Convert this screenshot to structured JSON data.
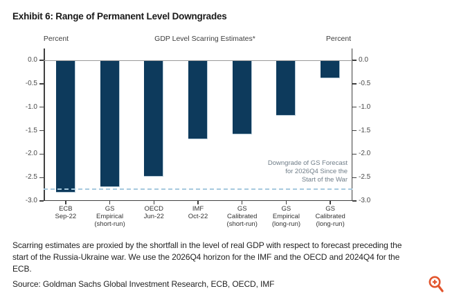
{
  "page": {
    "title": "Exhibit 6: Range of Permanent Level Downgrades",
    "footnote": "Scarring estimates are proxied by the shortfall in the level of real GDP with respect to forecast preceding the start of the Russia-Ukraine war. We use the 2026Q4 horizon for the IMF and the OECD and 2024Q4 for the ECB.",
    "source": "Source: Goldman Sachs Global Investment Research, ECB, OECD, IMF",
    "zoom_icon_color": "#e2542c"
  },
  "chart_data": {
    "type": "bar",
    "title": "GDP Level Scarring Estimates*",
    "left_axis_label": "Percent",
    "right_axis_label": "Percent",
    "categories": [
      "ECB\nSep-22",
      "GS\nEmpirical\n(short-run)",
      "OECD\nJun-22",
      "IMF\nOct-22",
      "GS\nCalibrated\n(short-run)",
      "GS\nEmpirical\n(long-run)",
      "GS\nCalibrated\n(long-run)"
    ],
    "values": [
      -2.82,
      -2.7,
      -2.48,
      -1.68,
      -1.58,
      -1.18,
      -0.38
    ],
    "ylim": [
      -3.0,
      0.0
    ],
    "y_ticks": [
      "0.0",
      "-0.5",
      "-1.0",
      "-1.5",
      "-2.0",
      "-2.5",
      "-3.0"
    ],
    "grid": false,
    "legend": null,
    "bar_color": "#0d3a5c",
    "zero_line_color": "#999999",
    "reference_line": {
      "value": -2.75,
      "style": "dashed",
      "color": "#a6c9de",
      "label": "Downgrade of GS Forecast\nfor 2026Q4 Since the\nStart of the War",
      "label_color": "#6f7d88"
    }
  }
}
